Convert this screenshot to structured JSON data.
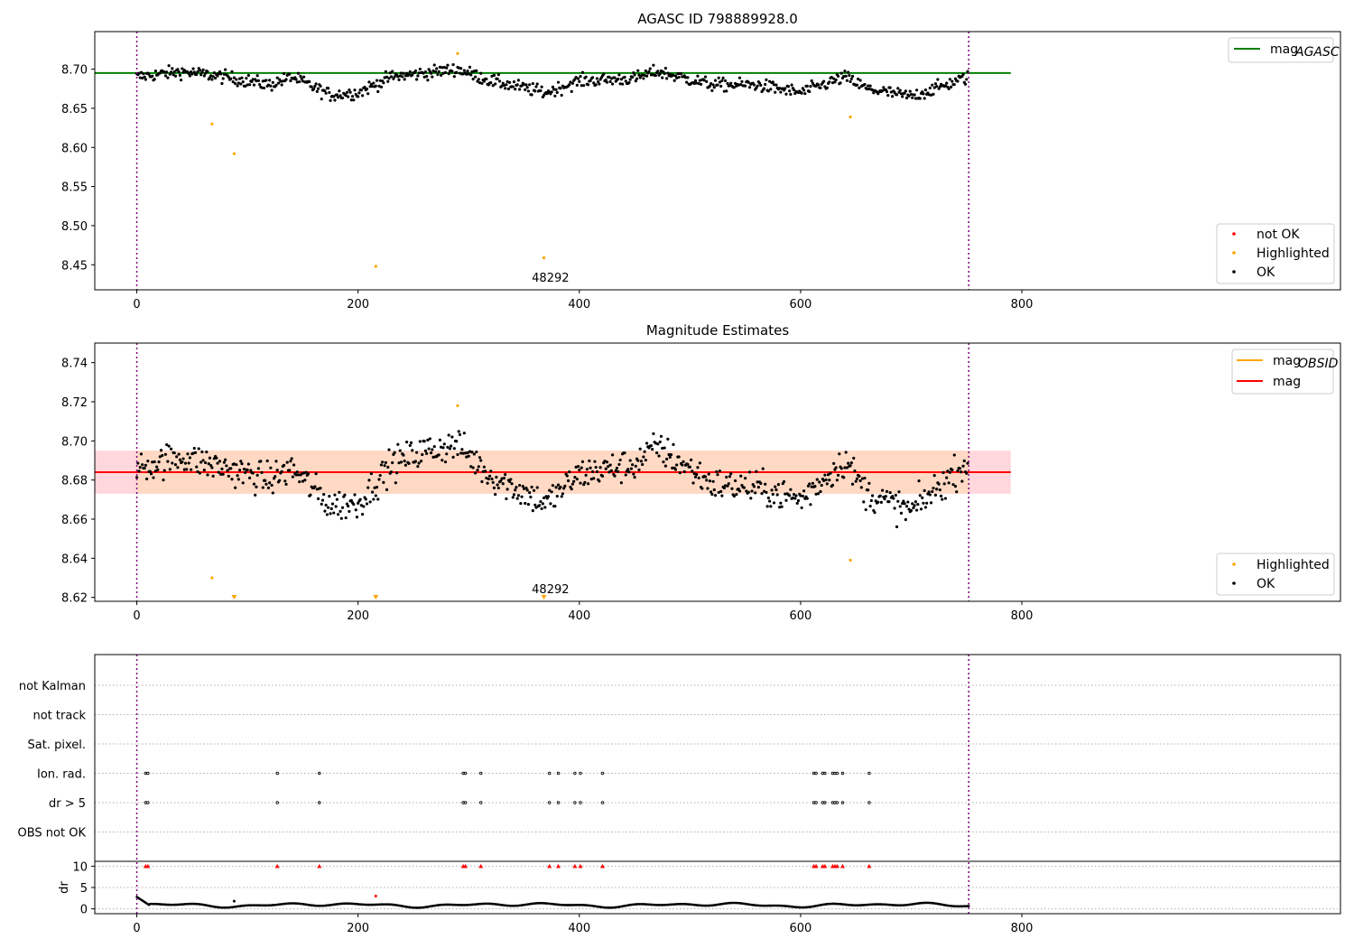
{
  "chart_data": [
    {
      "type": "scatter",
      "title": "AGASC ID 798889928.0",
      "xlim": [
        -38,
        1088
      ],
      "ylim": [
        8.418,
        8.748
      ],
      "xticks": [
        "0",
        "200",
        "400",
        "600",
        "800"
      ],
      "yticks": [
        "8.45",
        "8.50",
        "8.55",
        "8.60",
        "8.65",
        "8.70"
      ],
      "hline": {
        "name": "mag_AGASC",
        "value": 8.695,
        "color": "#008000",
        "x_range": [
          -38,
          790
        ]
      },
      "vlines": [
        0,
        752
      ],
      "series": [
        {
          "name": "not OK",
          "color": "#ff0000",
          "points": []
        },
        {
          "name": "Highlighted",
          "color": "#ffa500",
          "points": [
            [
              68,
              8.63
            ],
            [
              88,
              8.592
            ],
            [
              216,
              8.448
            ],
            [
              290,
              8.72
            ],
            [
              368,
              8.459
            ],
            [
              645,
              8.639
            ]
          ]
        },
        {
          "name": "OK",
          "color": "#000000",
          "trend_anchors": [
            [
              0,
              8.69
            ],
            [
              40,
              8.697
            ],
            [
              80,
              8.69
            ],
            [
              120,
              8.68
            ],
            [
              140,
              8.69
            ],
            [
              175,
              8.667
            ],
            [
              200,
              8.67
            ],
            [
              230,
              8.69
            ],
            [
              260,
              8.695
            ],
            [
              290,
              8.7
            ],
            [
              320,
              8.685
            ],
            [
              370,
              8.67
            ],
            [
              400,
              8.685
            ],
            [
              450,
              8.688
            ],
            [
              470,
              8.697
            ],
            [
              520,
              8.68
            ],
            [
              560,
              8.68
            ],
            [
              600,
              8.67
            ],
            [
              640,
              8.69
            ],
            [
              660,
              8.675
            ],
            [
              700,
              8.665
            ],
            [
              752,
              8.69
            ]
          ],
          "n_points": 752,
          "noise": 0.0075
        }
      ],
      "legend": {
        "position": "lower-right",
        "entries": [
          "not OK",
          "Highlighted",
          "OK"
        ]
      },
      "annotation": {
        "text": "48292",
        "x": 375,
        "y": 8.43
      },
      "legend_top": {
        "position": "upper-right",
        "entries": [
          {
            "label": "mag",
            "sub": "AGASC",
            "color": "#008000"
          }
        ]
      }
    },
    {
      "type": "scatter",
      "title": "Magnitude Estimates",
      "xlim": [
        -38,
        1088
      ],
      "ylim": [
        8.618,
        8.75
      ],
      "xticks": [
        "0",
        "200",
        "400",
        "600",
        "800"
      ],
      "yticks": [
        "8.62",
        "8.64",
        "8.66",
        "8.68",
        "8.70",
        "8.72",
        "8.74"
      ],
      "hline": {
        "name": "mag",
        "value": 8.684,
        "color": "#ff0000",
        "x_range": [
          -38,
          790
        ]
      },
      "band": {
        "low": 8.673,
        "high": 8.695,
        "x_range": [
          -38,
          790
        ],
        "inner_range": [
          0,
          752
        ]
      },
      "vlines": [
        0,
        752
      ],
      "series": [
        {
          "name": "Highlighted",
          "color": "#ffa500",
          "points": [
            [
              68,
              8.63
            ],
            [
              290,
              8.718
            ],
            [
              645,
              8.639
            ]
          ],
          "clipped_x": [
            88,
            216,
            368
          ]
        },
        {
          "name": "OK",
          "color": "#000000",
          "trend_anchors": [
            [
              0,
              8.686
            ],
            [
              40,
              8.692
            ],
            [
              80,
              8.686
            ],
            [
              120,
              8.68
            ],
            [
              140,
              8.686
            ],
            [
              175,
              8.667
            ],
            [
              200,
              8.668
            ],
            [
              230,
              8.688
            ],
            [
              260,
              8.695
            ],
            [
              290,
              8.698
            ],
            [
              320,
              8.682
            ],
            [
              370,
              8.668
            ],
            [
              400,
              8.683
            ],
            [
              450,
              8.688
            ],
            [
              470,
              8.697
            ],
            [
              520,
              8.678
            ],
            [
              560,
              8.676
            ],
            [
              600,
              8.67
            ],
            [
              640,
              8.69
            ],
            [
              660,
              8.673
            ],
            [
              700,
              8.664
            ],
            [
              752,
              8.69
            ]
          ],
          "n_points": 752,
          "noise": 0.0075
        }
      ],
      "legend": {
        "position": "lower-right",
        "entries": [
          "Highlighted",
          "OK"
        ]
      },
      "annotation": {
        "text": "48292",
        "x": 375,
        "y": 8.622
      },
      "legend_top": {
        "position": "upper-right",
        "entries": [
          {
            "label": "mag",
            "sub": "OBSID",
            "color": "#ffa500"
          },
          {
            "label": "mag",
            "sub": "",
            "color": "#ff0000"
          }
        ]
      }
    },
    {
      "type": "scatter",
      "title": "",
      "xlim": [
        -38,
        1088
      ],
      "flag_rows": [
        "not Kalman",
        "not track",
        "Sat. pixel.",
        "Ion. rad.",
        "dr > 5",
        "OBS not OK"
      ],
      "flag_points_x": [
        8,
        10,
        127,
        165,
        295,
        297,
        311,
        373,
        381,
        396,
        401,
        421,
        612,
        614,
        620,
        622,
        629,
        631,
        633,
        638,
        662
      ],
      "flag_rows_with_points": [
        "Ion. rad.",
        "dr > 5"
      ],
      "dr_ylabel": "dr",
      "dr_yticks": [
        "0",
        "5",
        "10"
      ],
      "dr_ylim": [
        -0.5,
        10.5
      ],
      "dr_clipped_x": [
        8,
        10,
        127,
        165,
        295,
        297,
        311,
        373,
        381,
        396,
        401,
        421,
        612,
        614,
        620,
        622,
        629,
        631,
        633,
        638,
        662
      ],
      "dr_extra_points": [
        [
          88,
          1.8
        ],
        [
          216,
          3.0
        ]
      ],
      "xticks": [
        "0",
        "200",
        "400",
        "600",
        "800"
      ],
      "vlines": [
        0,
        752
      ]
    }
  ]
}
